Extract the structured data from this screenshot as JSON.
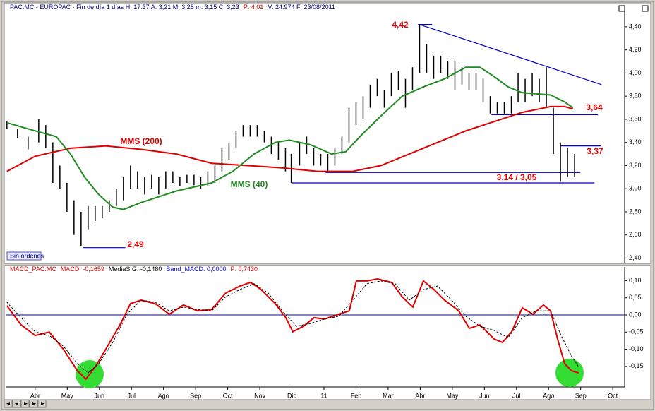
{
  "chart_data": [
    {
      "type": "ohlc",
      "header": [
        {
          "text": "PAC.MC - EUROPAC - Fin de día 1 días  H: 17:37  A: 3,21  M: 3,28  m: 3,15  C: 3,23",
          "color": "#000080"
        },
        {
          "text": "P: 4,01",
          "color": "#e00000"
        },
        {
          "text": "V: 24.974  F: 23/08/2011",
          "color": "#000080"
        }
      ],
      "button": "Sin órdenes",
      "xlim": [
        -0.92,
        18.37
      ],
      "ylim": [
        2.36,
        4.54
      ],
      "yticks": [
        {
          "value": 2.4,
          "label": "2,40"
        },
        {
          "value": 2.6,
          "label": "2,60"
        },
        {
          "value": 2.8,
          "label": "2,80"
        },
        {
          "value": 3.0,
          "label": "3,00"
        },
        {
          "value": 3.2,
          "label": "3,20"
        },
        {
          "value": 3.4,
          "label": "3,40"
        },
        {
          "value": 3.6,
          "label": "3,60"
        },
        {
          "value": 3.8,
          "label": "3,80"
        },
        {
          "value": 4.0,
          "label": "4,00"
        },
        {
          "value": 4.2,
          "label": "4,20"
        },
        {
          "value": 4.4,
          "label": "4,40"
        }
      ],
      "price": {
        "color": "#000000",
        "x": [
          -0.88,
          -0.55,
          -0.22,
          0.11,
          0.33,
          0.55,
          0.77,
          0.99,
          1.21,
          1.43,
          1.65,
          1.87,
          2.09,
          2.31,
          2.53,
          2.75,
          2.97,
          3.19,
          3.41,
          3.63,
          3.85,
          4.07,
          4.29,
          4.51,
          4.73,
          4.95,
          5.16,
          5.38,
          5.6,
          5.82,
          6.04,
          6.26,
          6.48,
          6.7,
          6.92,
          7.14,
          7.36,
          7.58,
          7.8,
          7.98,
          8.24,
          8.46,
          8.68,
          8.9,
          9.12,
          9.34,
          9.56,
          9.78,
          10.0,
          10.22,
          10.44,
          10.66,
          10.88,
          11.1,
          11.32,
          11.54,
          11.76,
          11.98,
          12.2,
          12.42,
          12.64,
          12.86,
          13.08,
          13.3,
          13.52,
          13.74,
          13.96,
          14.18,
          14.4,
          14.62,
          14.84,
          15.05,
          15.27,
          15.49,
          15.71,
          15.93,
          16.15,
          16.37,
          16.59,
          16.81
        ],
        "high": [
          3.58,
          3.52,
          3.45,
          3.6,
          3.55,
          3.4,
          3.2,
          3.05,
          2.9,
          2.8,
          2.85,
          2.85,
          2.85,
          2.9,
          3.0,
          3.1,
          3.2,
          3.15,
          3.1,
          3.12,
          3.1,
          3.15,
          3.15,
          3.1,
          3.12,
          3.12,
          3.1,
          3.15,
          3.2,
          3.35,
          3.4,
          3.5,
          3.55,
          3.55,
          3.55,
          3.5,
          3.45,
          3.4,
          3.35,
          3.3,
          3.4,
          3.45,
          3.35,
          3.3,
          3.3,
          3.35,
          3.45,
          3.7,
          3.75,
          3.8,
          3.9,
          3.95,
          3.85,
          4.0,
          4.02,
          3.95,
          4.05,
          4.42,
          4.25,
          4.15,
          4.15,
          4.1,
          4.1,
          4.05,
          4.0,
          4.0,
          3.95,
          3.8,
          3.75,
          3.75,
          3.8,
          4.0,
          3.95,
          4.0,
          3.95,
          4.05,
          3.7,
          3.4,
          3.35,
          3.3
        ],
        "low": [
          3.52,
          3.44,
          3.34,
          3.4,
          3.35,
          3.05,
          3.0,
          2.8,
          2.6,
          2.5,
          2.65,
          2.72,
          2.75,
          2.8,
          2.85,
          2.9,
          3.0,
          3.0,
          2.95,
          3.0,
          2.95,
          3.0,
          3.05,
          3.02,
          3.05,
          3.03,
          3.0,
          3.02,
          3.05,
          3.15,
          3.25,
          3.35,
          3.45,
          3.45,
          3.45,
          3.4,
          3.3,
          3.25,
          3.15,
          3.05,
          3.2,
          3.3,
          3.2,
          3.2,
          3.15,
          3.2,
          3.3,
          3.4,
          3.55,
          3.6,
          3.7,
          3.8,
          3.7,
          3.8,
          3.85,
          3.7,
          3.85,
          4.0,
          4.0,
          3.95,
          4.0,
          3.95,
          3.85,
          3.9,
          3.85,
          3.85,
          3.75,
          3.65,
          3.65,
          3.65,
          3.65,
          3.75,
          3.75,
          3.8,
          3.75,
          3.7,
          3.3,
          3.06,
          3.1,
          3.1
        ]
      },
      "series": [
        {
          "name": "MMS (200)",
          "color": "#e00000",
          "x": [
            -0.88,
            0,
            1.1,
            2.2,
            3.3,
            4.4,
            5.5,
            6.6,
            7.7,
            8.8,
            9.9,
            10.78,
            11.66,
            12.54,
            13.42,
            14.3,
            15.18,
            16.06,
            16.5,
            16.76
          ],
          "values": [
            3.15,
            3.28,
            3.35,
            3.37,
            3.34,
            3.3,
            3.22,
            3.2,
            3.18,
            3.15,
            3.15,
            3.2,
            3.3,
            3.4,
            3.5,
            3.58,
            3.66,
            3.71,
            3.71,
            3.69
          ]
        },
        {
          "name": "MMS (40)",
          "color": "#228b22",
          "x": [
            -0.88,
            0,
            0.66,
            1.1,
            1.54,
            1.98,
            2.42,
            2.75,
            3.3,
            4.4,
            5.5,
            6.16,
            6.82,
            7.48,
            7.92,
            8.58,
            9.24,
            9.68,
            10.12,
            10.78,
            11.44,
            12.1,
            12.76,
            13.42,
            13.86,
            14.3,
            14.74,
            15.18,
            15.62,
            16.06,
            16.5,
            16.76
          ],
          "values": [
            3.57,
            3.5,
            3.45,
            3.3,
            3.1,
            2.95,
            2.84,
            2.82,
            2.88,
            2.98,
            3.05,
            3.15,
            3.3,
            3.4,
            3.42,
            3.38,
            3.3,
            3.32,
            3.45,
            3.63,
            3.8,
            3.88,
            3.95,
            4.05,
            4.05,
            3.97,
            3.88,
            3.83,
            3.82,
            3.81,
            3.75,
            3.7
          ]
        }
      ],
      "annotations": [
        {
          "label": "4,42",
          "x": [
            11.93,
            12.37
          ],
          "values": [
            4.42,
            4.42
          ]
        },
        {
          "x": [
            11.98,
            17.65
          ],
          "values": [
            4.42,
            3.9
          ]
        },
        {
          "label": "2,49",
          "x": [
            1.49,
            2.81
          ],
          "values": [
            2.49,
            2.49
          ]
        },
        {
          "label": "3,64",
          "x": [
            14.22,
            17.54
          ],
          "values": [
            3.64,
            3.64
          ]
        },
        {
          "label": "3,37",
          "x": [
            16.37,
            17.63
          ],
          "values": [
            3.37,
            3.37
          ]
        },
        {
          "label": "3,14 / 3,05",
          "x": [
            9.05,
            16.99
          ],
          "values": [
            3.14,
            3.14
          ]
        },
        {
          "x": [
            7.98,
            17.43
          ],
          "values": [
            3.05,
            3.05
          ]
        }
      ],
      "annotation_color": "#0000cc"
    },
    {
      "type": "line",
      "header": [
        {
          "text": "MACD_PAC.MC",
          "color": "#e00000"
        },
        {
          "text": "MACD: -0,1659",
          "color": "#e00000"
        },
        {
          "text": "MediaSIG: -0,1480",
          "color": "#000000"
        },
        {
          "text": "Band_MACD: 0,0000",
          "color": "#0000cc"
        },
        {
          "text": "P: 0,7430",
          "color": "#e00000"
        }
      ],
      "xlim": [
        -0.92,
        18.37
      ],
      "ylim": [
        -0.21,
        0.14
      ],
      "yticks": [
        {
          "value": -0.15,
          "label": "-0,15"
        },
        {
          "value": -0.1,
          "label": "-0,10"
        },
        {
          "value": -0.05,
          "label": "-0,05"
        },
        {
          "value": 0,
          "label": "0,00"
        },
        {
          "value": 0.05,
          "label": "0,05"
        },
        {
          "value": 0.1,
          "label": "0,10"
        }
      ],
      "xticks": [
        {
          "value": 0,
          "label": "Abr"
        },
        {
          "value": 1,
          "label": "May"
        },
        {
          "value": 2,
          "label": "Jun"
        },
        {
          "value": 3,
          "label": "Jul"
        },
        {
          "value": 4,
          "label": "Ago"
        },
        {
          "value": 5,
          "label": "Sep"
        },
        {
          "value": 6,
          "label": "Oct"
        },
        {
          "value": 7,
          "label": "Nov"
        },
        {
          "value": 8,
          "label": "Dic"
        },
        {
          "value": 9,
          "label": "11"
        },
        {
          "value": 10,
          "label": "Feb"
        },
        {
          "value": 11,
          "label": "Mar"
        },
        {
          "value": 12,
          "label": "Abr"
        },
        {
          "value": 13,
          "label": "May"
        },
        {
          "value": 14,
          "label": "Jun"
        },
        {
          "value": 15,
          "label": "Jul"
        },
        {
          "value": 16,
          "label": "Ago"
        },
        {
          "value": 17,
          "label": "Sep"
        },
        {
          "value": 18,
          "label": "Oct"
        }
      ],
      "band": {
        "value": 0,
        "color": "#0000cc"
      },
      "series": [
        {
          "color": "#e00000",
          "x": [
            -0.88,
            -0.44,
            0,
            0.44,
            0.88,
            1.32,
            1.58,
            1.87,
            2.2,
            2.64,
            2.97,
            3.3,
            3.74,
            4.18,
            4.62,
            5.06,
            5.5,
            5.94,
            6.38,
            6.71,
            7.04,
            7.48,
            7.81,
            8.03,
            8.36,
            8.69,
            9.02,
            9.46,
            9.79,
            10.01,
            10.34,
            10.67,
            11.11,
            11.44,
            11.77,
            12.1,
            12.43,
            12.76,
            13.2,
            13.53,
            13.86,
            14.3,
            14.56,
            14.85,
            15.18,
            15.51,
            15.84,
            16.06,
            16.28,
            16.5,
            16.72,
            16.94
          ],
          "values": [
            0.027,
            -0.029,
            -0.06,
            -0.05,
            -0.1,
            -0.163,
            -0.187,
            -0.152,
            -0.1,
            -0.029,
            0.033,
            0.043,
            0.033,
            0.002,
            0.029,
            0.012,
            0.016,
            0.064,
            0.084,
            0.095,
            0.074,
            0.033,
            -0.008,
            -0.049,
            -0.033,
            -0.008,
            -0.012,
            0.002,
            0.012,
            0.099,
            0.099,
            0.105,
            0.095,
            0.053,
            0.023,
            0.099,
            0.074,
            0.043,
            0.012,
            -0.039,
            -0.029,
            -0.07,
            -0.08,
            -0.049,
            0.021,
            0.002,
            0.029,
            0.012,
            -0.07,
            -0.142,
            -0.163,
            -0.169
          ]
        },
        {
          "color": "#000000",
          "dashed": true,
          "x": [
            -0.88,
            -0.44,
            0,
            0.44,
            0.88,
            1.32,
            1.65,
            1.98,
            2.42,
            2.86,
            3.3,
            3.74,
            4.18,
            4.62,
            5.06,
            5.5,
            5.94,
            6.38,
            6.82,
            7.26,
            7.7,
            8.14,
            8.58,
            9.02,
            9.46,
            9.9,
            10.34,
            10.78,
            11.22,
            11.66,
            12.1,
            12.54,
            12.98,
            13.42,
            13.86,
            14.3,
            14.74,
            15.18,
            15.62,
            16.06,
            16.39,
            16.72,
            16.94
          ],
          "values": [
            0.037,
            -0.008,
            -0.049,
            -0.06,
            -0.091,
            -0.142,
            -0.169,
            -0.142,
            -0.08,
            0.002,
            0.043,
            0.037,
            0.012,
            0.023,
            0.016,
            0.012,
            0.053,
            0.074,
            0.091,
            0.064,
            0.012,
            -0.033,
            -0.025,
            -0.012,
            -0.004,
            0.043,
            0.091,
            0.099,
            0.091,
            0.043,
            0.074,
            0.084,
            0.043,
            -0.004,
            -0.033,
            -0.045,
            -0.066,
            -0.008,
            0.012,
            0.012,
            -0.06,
            -0.121,
            -0.152
          ]
        }
      ]
    }
  ]
}
